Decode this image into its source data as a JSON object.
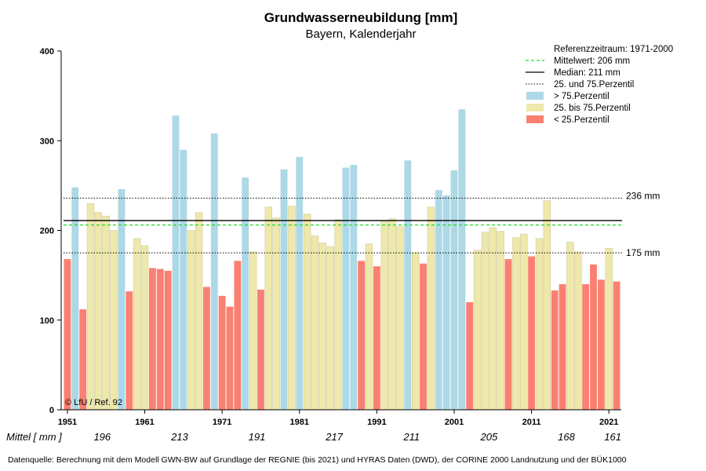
{
  "chart_data": {
    "type": "bar",
    "title": "Grundwasserneubildung [mm]",
    "subtitle": "Bayern, Kalenderjahr",
    "ylim": [
      0,
      400
    ],
    "yticks": [
      0,
      100,
      200,
      300,
      400
    ],
    "xticks": [
      1951,
      1961,
      1971,
      1981,
      1991,
      2001,
      2011,
      2021
    ],
    "x": [
      1951,
      1952,
      1953,
      1954,
      1955,
      1956,
      1957,
      1958,
      1959,
      1960,
      1961,
      1962,
      1963,
      1964,
      1965,
      1966,
      1967,
      1968,
      1969,
      1970,
      1971,
      1972,
      1973,
      1974,
      1975,
      1976,
      1977,
      1978,
      1979,
      1980,
      1981,
      1982,
      1983,
      1984,
      1985,
      1986,
      1987,
      1988,
      1989,
      1990,
      1991,
      1992,
      1993,
      1994,
      1995,
      1996,
      1997,
      1998,
      1999,
      2000,
      2001,
      2002,
      2003,
      2004,
      2005,
      2006,
      2007,
      2008,
      2009,
      2010,
      2011,
      2012,
      2013,
      2014,
      2015,
      2016,
      2017,
      2018,
      2019,
      2020,
      2021,
      2022
    ],
    "values": [
      168,
      248,
      112,
      230,
      220,
      216,
      200,
      246,
      132,
      191,
      183,
      158,
      157,
      155,
      328,
      290,
      200,
      220,
      137,
      308,
      127,
      115,
      166,
      259,
      176,
      134,
      226,
      214,
      268,
      227,
      282,
      218,
      194,
      186,
      182,
      212,
      270,
      273,
      166,
      185,
      160,
      210,
      213,
      204,
      278,
      175,
      163,
      226,
      245,
      239,
      267,
      335,
      120,
      178,
      198,
      203,
      199,
      168,
      192,
      196,
      171,
      191,
      233,
      133,
      140,
      187,
      176,
      140,
      162,
      145,
      180,
      143
    ],
    "categories_legend": [
      {
        "key": "high",
        "label": "> 75.Perzentil",
        "color": "#add8e6"
      },
      {
        "key": "mid",
        "label": "25. bis 75.Perzentil",
        "color": "#eee8aa"
      },
      {
        "key": "low",
        "label": "< 25.Perzentil",
        "color": "#fa8072"
      }
    ],
    "legend_placement": "top-right",
    "reference_period": "Referenzzeitraum: 1971-2000",
    "mean": {
      "value": 206,
      "label": "Mittelwert:  206 mm",
      "color": "#22dd22"
    },
    "median": {
      "value": 211,
      "label": "Median:  211 mm"
    },
    "percentiles": {
      "label": "25. und 75.Perzentil",
      "p25": 175,
      "p75": 236,
      "p25_label": "175 mm",
      "p75_label": "236 mm"
    },
    "decade_means": {
      "label": "Mittel [ mm ]",
      "items": [
        {
          "label": "196",
          "x": 1955.5
        },
        {
          "label": "213",
          "x": 1965.5
        },
        {
          "label": "191",
          "x": 1975.5
        },
        {
          "label": "217",
          "x": 1985.5
        },
        {
          "label": "211",
          "x": 1995.5
        },
        {
          "label": "205",
          "x": 2005.5
        },
        {
          "label": "168",
          "x": 2015.5
        },
        {
          "label": "161",
          "x": 2021.5
        }
      ]
    },
    "copyright": "© LfU / Ref. 92",
    "source": "Datenquelle: Berechnung mit dem Modell GWN-BW auf Grundlage der REGNIE (bis 2021) und HYRAS Daten (DWD), der CORINE 2000 Landnutzung und der BÜK1000"
  }
}
